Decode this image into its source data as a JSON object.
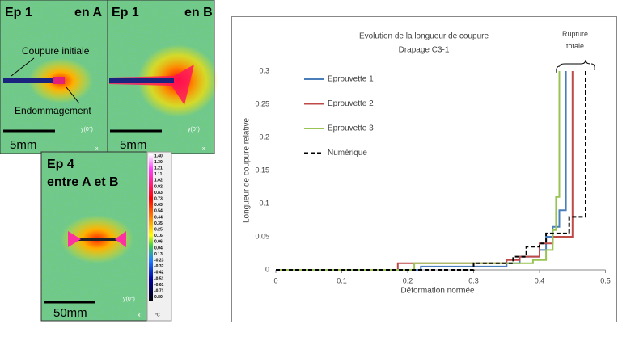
{
  "panels": [
    {
      "title": "Ep 1",
      "location": "en A",
      "labels": [
        "Coupure initiale",
        "Endommagement"
      ],
      "scale": "5mm",
      "axis_y": "y(0°)",
      "axis_x": "x"
    },
    {
      "title": "Ep 1",
      "location": "en B",
      "scale": "5mm",
      "axis_y": "y(0°)",
      "axis_x": "x"
    },
    {
      "title": "Ep 4",
      "location": "entre A et B",
      "scale": "50mm",
      "axis_y": "y(0°)",
      "axis_x": "x",
      "colorbar": [
        "1.40",
        "1.30",
        "1.21",
        "1.11",
        "1.02",
        "0.92",
        "0.83",
        "0.73",
        "0.63",
        "0.54",
        "0.44",
        "0.35",
        "0.25",
        "0.16",
        "0.06",
        "0.04",
        "0.13",
        "-0.23",
        "-0.32",
        "-0.42",
        "-0.51",
        "-0.61",
        "-0.71",
        "0.80"
      ],
      "colorbar_unit": "°C"
    }
  ],
  "chart_data": {
    "type": "line",
    "title": "Evolution de la longueur de coupure",
    "subtitle": "Drapage C3-1",
    "annotation": "Rupture totale",
    "xlabel": "Déformation normée",
    "ylabel": "Longueur de coupure relative",
    "xlim": [
      0,
      0.5
    ],
    "ylim": [
      0,
      0.3
    ],
    "xticks": [
      0,
      0.1,
      0.2,
      0.3,
      0.4,
      0.5
    ],
    "yticks": [
      0,
      0.05,
      0.1,
      0.15,
      0.2,
      0.25,
      0.3
    ],
    "series": [
      {
        "name": "Eprouvette 1",
        "color": "#4a7ebb",
        "dash": false,
        "x": [
          0,
          0.22,
          0.22,
          0.35,
          0.35,
          0.37,
          0.37,
          0.4,
          0.4,
          0.41,
          0.41,
          0.42,
          0.42,
          0.43,
          0.43,
          0.44,
          0.44
        ],
        "values": [
          0,
          0,
          0.005,
          0.005,
          0.01,
          0.01,
          0.02,
          0.02,
          0.03,
          0.03,
          0.05,
          0.05,
          0.065,
          0.065,
          0.09,
          0.09,
          0.3
        ]
      },
      {
        "name": "Eprouvette 2",
        "color": "#be4b48",
        "dash": false,
        "x": [
          0,
          0.185,
          0.185,
          0.35,
          0.35,
          0.37,
          0.37,
          0.4,
          0.4,
          0.42,
          0.42,
          0.45,
          0.45
        ],
        "values": [
          0,
          0,
          0.01,
          0.01,
          0.015,
          0.015,
          0.02,
          0.02,
          0.04,
          0.04,
          0.05,
          0.05,
          0.3
        ]
      },
      {
        "name": "Eprouvette 3",
        "color": "#98c454",
        "dash": false,
        "x": [
          0,
          0.21,
          0.21,
          0.39,
          0.39,
          0.41,
          0.41,
          0.42,
          0.42,
          0.425,
          0.425,
          0.43,
          0.43
        ],
        "values": [
          0,
          0,
          0.01,
          0.01,
          0.015,
          0.015,
          0.03,
          0.03,
          0.06,
          0.06,
          0.11,
          0.11,
          0.3
        ]
      },
      {
        "name": "Numérique",
        "color": "#000000",
        "dash": true,
        "x": [
          0,
          0.3,
          0.3,
          0.36,
          0.36,
          0.38,
          0.38,
          0.4,
          0.4,
          0.41,
          0.41,
          0.445,
          0.445,
          0.47,
          0.47
        ],
        "values": [
          0,
          0,
          0.01,
          0.01,
          0.02,
          0.02,
          0.035,
          0.035,
          0.04,
          0.04,
          0.055,
          0.055,
          0.08,
          0.08,
          0.3
        ]
      }
    ]
  }
}
